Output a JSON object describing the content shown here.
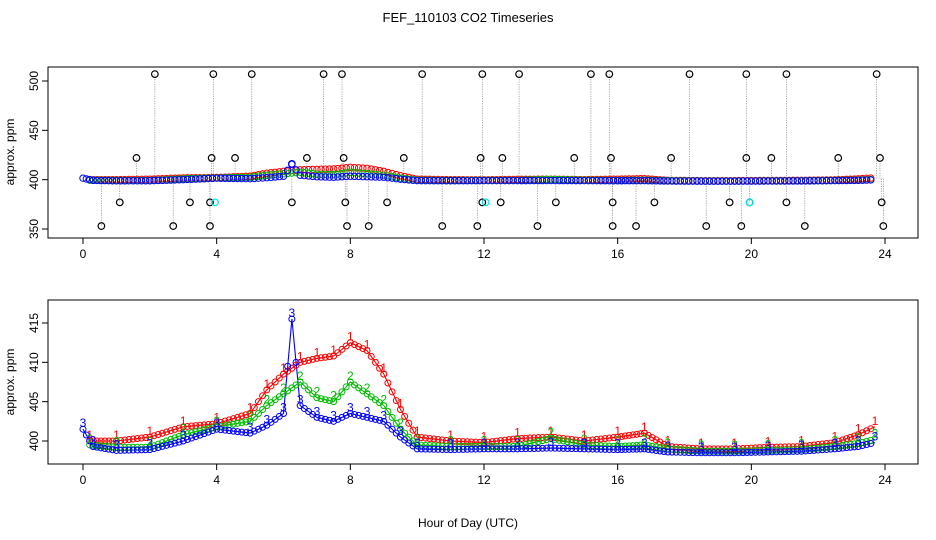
{
  "chart_data": [
    {
      "type": "scatter",
      "title": "FEF_110103  CO2 Timeseries",
      "xlabel": "",
      "ylabel": "approx. ppm",
      "xlim": [
        0,
        24
      ],
      "ylim": [
        350,
        510
      ],
      "xticks": [
        0,
        4,
        8,
        12,
        16,
        20,
        24
      ],
      "yticks": [
        350,
        400,
        450,
        500
      ],
      "grid": false,
      "series": [
        {
          "name": "calibration_high",
          "color": "#000000",
          "marker": "circle",
          "x": [
            2.15,
            3.9,
            5.05,
            7.2,
            7.75,
            10.15,
            11.95,
            13.05,
            15.2,
            15.75,
            18.15,
            19.85,
            21.05,
            23.75
          ],
          "y": [
            507,
            507,
            507,
            507,
            507,
            507,
            507,
            507,
            507,
            507,
            507,
            507,
            507,
            507
          ]
        },
        {
          "name": "calibration_mid",
          "color": "#000000",
          "marker": "circle",
          "x": [
            1.6,
            3.85,
            4.55,
            6.7,
            7.8,
            9.6,
            11.9,
            12.55,
            14.7,
            15.8,
            17.6,
            19.85,
            20.6,
            22.6,
            23.85
          ],
          "y": [
            422,
            422,
            422,
            422,
            422,
            422,
            422,
            422,
            422,
            422,
            422,
            422,
            422,
            422,
            422
          ]
        },
        {
          "name": "calibration_low",
          "color": "#000000",
          "marker": "circle",
          "x": [
            1.1,
            3.2,
            3.8,
            6.25,
            7.85,
            9.1,
            11.95,
            12.5,
            14.15,
            15.85,
            17.1,
            19.35,
            19.95,
            21.05,
            23.9
          ],
          "y": [
            377,
            377,
            377,
            377,
            377,
            377,
            377,
            377,
            377,
            377,
            377,
            377,
            377,
            377,
            377
          ]
        },
        {
          "name": "calibration_zero",
          "color": "#000000",
          "marker": "circle",
          "x": [
            0.55,
            2.7,
            3.8,
            7.9,
            8.55,
            10.75,
            11.8,
            13.6,
            15.85,
            16.55,
            18.65,
            19.7,
            21.6,
            23.95
          ],
          "y": [
            353,
            353,
            353,
            353,
            353,
            353,
            353,
            353,
            353,
            353,
            353,
            353,
            353,
            353
          ]
        },
        {
          "name": "cyan_flags",
          "color": "#00e5e5",
          "marker": "circle",
          "x": [
            3.95,
            12.05,
            19.95
          ],
          "y": [
            377,
            377,
            377
          ]
        },
        {
          "name": "blue_spike",
          "color": "#0000cc",
          "marker": "circle",
          "x": [
            6.25
          ],
          "y": [
            416
          ]
        }
      ]
    },
    {
      "type": "line",
      "title": "",
      "xlabel": "Hour of Day (UTC)",
      "ylabel": "approx. ppm",
      "xlim": [
        0,
        24
      ],
      "ylim": [
        398,
        417
      ],
      "xticks": [
        0,
        4,
        8,
        12,
        16,
        20,
        24
      ],
      "yticks": [
        400,
        405,
        410,
        415
      ],
      "grid": false,
      "series": [
        {
          "name": "1",
          "label": "1",
          "color": "#ff0000",
          "x": [
            0.2,
            1.0,
            2.0,
            3.0,
            4.0,
            5.0,
            5.5,
            6.0,
            6.5,
            7.0,
            7.5,
            8.0,
            8.5,
            9.0,
            9.5,
            10.0,
            11.0,
            12.0,
            13.0,
            14.0,
            15.0,
            16.0,
            16.8,
            17.5,
            18.5,
            19.5,
            20.5,
            21.5,
            22.5,
            23.2,
            23.7
          ],
          "y": [
            400.0,
            400.0,
            400.5,
            401.8,
            402.2,
            403.5,
            406.5,
            408.5,
            410.0,
            410.5,
            410.8,
            412.5,
            411.5,
            408.5,
            404.0,
            400.5,
            400.0,
            399.8,
            400.3,
            400.5,
            400.0,
            400.5,
            401.0,
            399.3,
            399.0,
            399.0,
            399.2,
            399.3,
            399.8,
            400.8,
            401.8
          ]
        },
        {
          "name": "2",
          "label": "2",
          "color": "#00bb00",
          "x": [
            0.2,
            1.0,
            2.0,
            3.0,
            4.0,
            5.0,
            5.5,
            6.0,
            6.5,
            7.0,
            7.5,
            8.0,
            8.5,
            9.0,
            9.5,
            10.0,
            11.0,
            12.0,
            13.0,
            14.0,
            15.0,
            16.0,
            16.8,
            17.5,
            18.5,
            19.5,
            20.5,
            21.5,
            22.5,
            23.2,
            23.7
          ],
          "y": [
            399.5,
            399.2,
            399.2,
            400.8,
            401.8,
            402.5,
            404.5,
            406.0,
            407.5,
            405.5,
            405.0,
            407.5,
            406.0,
            404.5,
            401.5,
            399.5,
            399.3,
            399.3,
            399.3,
            400.3,
            399.5,
            399.3,
            399.5,
            399.0,
            398.7,
            398.7,
            398.8,
            398.9,
            399.3,
            399.7,
            400.2
          ]
        },
        {
          "name": "3",
          "label": "3",
          "color": "#0000ff",
          "x": [
            0.0,
            0.3,
            1.0,
            2.0,
            3.0,
            4.0,
            5.0,
            5.5,
            6.0,
            6.25,
            6.5,
            7.0,
            7.5,
            8.0,
            8.5,
            9.0,
            9.5,
            10.0,
            11.0,
            12.0,
            13.0,
            14.0,
            15.0,
            16.0,
            16.8,
            17.5,
            18.5,
            19.5,
            20.5,
            21.5,
            22.5,
            23.2,
            23.7
          ],
          "y": [
            401.5,
            399.3,
            398.8,
            398.9,
            400.0,
            401.5,
            401.0,
            402.0,
            403.5,
            415.5,
            404.5,
            403.0,
            402.5,
            403.5,
            403.0,
            402.5,
            400.5,
            399.0,
            398.9,
            399.0,
            399.0,
            399.1,
            399.0,
            398.9,
            399.0,
            398.6,
            398.5,
            398.5,
            398.6,
            398.7,
            399.0,
            399.3,
            399.8
          ]
        }
      ]
    }
  ]
}
